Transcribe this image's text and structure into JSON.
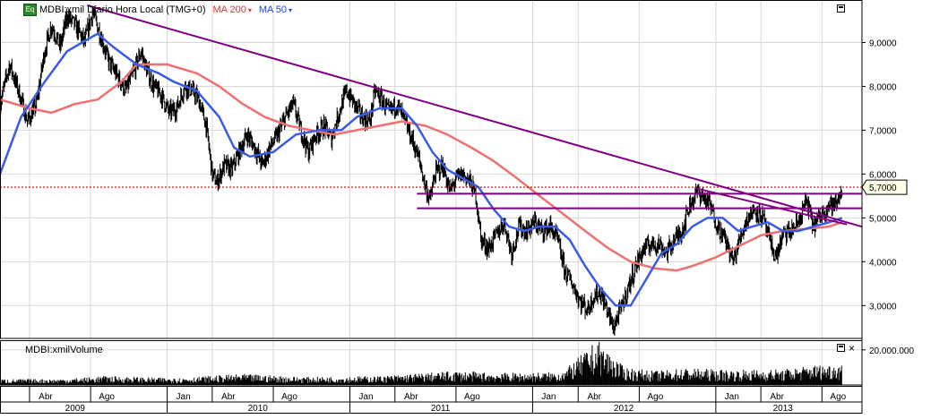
{
  "header": {
    "symbol_badge": "Eq",
    "symbol_label": "MDBI:xmil Diario Hora Local (TMG+0)",
    "ma200_label": "MA 200",
    "ma50_label": "MA 50",
    "caret": "▾"
  },
  "volume_pane": {
    "title": "MDBI:xmilVolume",
    "close_glyph": "×"
  },
  "colors": {
    "price_bars": "#000000",
    "ma200": "#f07070",
    "ma50": "#3a5ae8",
    "trendline": "#800080",
    "current_price_line": "#b00000",
    "grid": "#d8d8d8"
  },
  "chart_data": {
    "type": "line",
    "price_axis": {
      "ticks": [
        3.0,
        4.0,
        5.0,
        6.0,
        7.0,
        8.0,
        9.0
      ],
      "tick_labels": [
        "3,0000",
        "4,0000",
        "5,0000",
        "6,0000",
        "7,0000",
        "8,0000",
        "9,0000"
      ],
      "range": [
        2.25,
        9.95
      ]
    },
    "current_price": 5.7,
    "current_price_label": "5,7000",
    "volume_axis": {
      "ticks": [
        20000000
      ],
      "tick_labels": [
        "20.000.000"
      ],
      "range": [
        0,
        25000000
      ]
    },
    "time_axis": {
      "range": [
        "2009-02-01",
        "2013-10-20"
      ],
      "month_ticks": [
        {
          "date": "2009-04-01",
          "label": "Abr"
        },
        {
          "date": "2009-08-01",
          "label": "Ago"
        },
        {
          "date": "2010-01-01",
          "label": "Jan"
        },
        {
          "date": "2010-04-01",
          "label": "Abr"
        },
        {
          "date": "2010-08-01",
          "label": "Ago"
        },
        {
          "date": "2011-01-01",
          "label": "Jan"
        },
        {
          "date": "2011-04-01",
          "label": "Abr"
        },
        {
          "date": "2011-08-01",
          "label": "Ago"
        },
        {
          "date": "2012-01-01",
          "label": "Jan"
        },
        {
          "date": "2012-04-01",
          "label": "Abr"
        },
        {
          "date": "2012-08-01",
          "label": "Ago"
        },
        {
          "date": "2013-01-01",
          "label": "Jan"
        },
        {
          "date": "2013-04-01",
          "label": "Abr"
        },
        {
          "date": "2013-08-01",
          "label": "Ago"
        }
      ],
      "year_labels": [
        {
          "date": "2009-07-01",
          "label": "2009"
        },
        {
          "date": "2010-07-01",
          "label": "2010"
        },
        {
          "date": "2011-07-01",
          "label": "2011"
        },
        {
          "date": "2012-07-01",
          "label": "2012"
        },
        {
          "date": "2013-05-15",
          "label": "2013"
        }
      ],
      "year_boundaries": [
        "2010-01-01",
        "2011-01-01",
        "2012-01-01",
        "2013-01-01"
      ]
    },
    "series": [
      {
        "name": "MDBI:xmil",
        "style": "ohlc",
        "points": [
          [
            "2009-02-01",
            7.6
          ],
          [
            "2009-02-20",
            8.5
          ],
          [
            "2009-03-10",
            7.9
          ],
          [
            "2009-03-28",
            7.2
          ],
          [
            "2009-04-15",
            7.6
          ],
          [
            "2009-05-01",
            8.8
          ],
          [
            "2009-05-15",
            9.4
          ],
          [
            "2009-06-01",
            8.9
          ],
          [
            "2009-06-15",
            9.6
          ],
          [
            "2009-07-01",
            9.4
          ],
          [
            "2009-07-20",
            9.0
          ],
          [
            "2009-08-05",
            9.7
          ],
          [
            "2009-08-20",
            9.2
          ],
          [
            "2009-09-05",
            8.6
          ],
          [
            "2009-09-25",
            8.2
          ],
          [
            "2009-10-10",
            7.9
          ],
          [
            "2009-10-25",
            8.3
          ],
          [
            "2009-11-10",
            8.8
          ],
          [
            "2009-11-20",
            8.4
          ],
          [
            "2009-12-05",
            8.0
          ],
          [
            "2009-12-20",
            7.8
          ],
          [
            "2010-01-05",
            7.4
          ],
          [
            "2010-01-20",
            7.5
          ],
          [
            "2010-02-05",
            8.0
          ],
          [
            "2010-02-20",
            7.9
          ],
          [
            "2010-03-05",
            7.7
          ],
          [
            "2010-03-20",
            7.1
          ],
          [
            "2010-04-01",
            6.0
          ],
          [
            "2010-04-10",
            5.8
          ],
          [
            "2010-04-25",
            6.2
          ],
          [
            "2010-05-10",
            6.1
          ],
          [
            "2010-05-25",
            6.5
          ],
          [
            "2010-06-10",
            6.9
          ],
          [
            "2010-06-25",
            6.6
          ],
          [
            "2010-07-10",
            6.2
          ],
          [
            "2010-07-25",
            6.6
          ],
          [
            "2010-08-10",
            6.9
          ],
          [
            "2010-08-25",
            7.3
          ],
          [
            "2010-09-10",
            7.6
          ],
          [
            "2010-09-25",
            7.0
          ],
          [
            "2010-10-10",
            6.5
          ],
          [
            "2010-10-25",
            6.9
          ],
          [
            "2010-11-10",
            7.1
          ],
          [
            "2010-11-25",
            6.8
          ],
          [
            "2010-12-10",
            7.4
          ],
          [
            "2010-12-25",
            7.9
          ],
          [
            "2011-01-10",
            7.6
          ],
          [
            "2011-01-25",
            7.3
          ],
          [
            "2011-02-10",
            7.2
          ],
          [
            "2011-02-20",
            7.9
          ],
          [
            "2011-03-05",
            7.7
          ],
          [
            "2011-03-20",
            7.4
          ],
          [
            "2011-04-05",
            7.6
          ],
          [
            "2011-04-20",
            7.2
          ],
          [
            "2011-05-05",
            6.8
          ],
          [
            "2011-05-20",
            6.3
          ],
          [
            "2011-06-01",
            5.7
          ],
          [
            "2011-06-10",
            5.4
          ],
          [
            "2011-06-20",
            6.0
          ],
          [
            "2011-07-05",
            6.2
          ],
          [
            "2011-07-20",
            5.6
          ],
          [
            "2011-08-01",
            5.9
          ],
          [
            "2011-08-15",
            6.0
          ],
          [
            "2011-08-30",
            5.8
          ],
          [
            "2011-09-10",
            5.5
          ],
          [
            "2011-09-20",
            4.5
          ],
          [
            "2011-10-05",
            4.3
          ],
          [
            "2011-10-20",
            4.6
          ],
          [
            "2011-11-05",
            4.9
          ],
          [
            "2011-11-20",
            4.2
          ],
          [
            "2011-12-05",
            4.8
          ],
          [
            "2011-12-20",
            4.7
          ],
          [
            "2012-01-05",
            4.9
          ],
          [
            "2012-01-20",
            4.7
          ],
          [
            "2012-02-05",
            4.8
          ],
          [
            "2012-02-20",
            4.5
          ],
          [
            "2012-03-05",
            3.8
          ],
          [
            "2012-03-20",
            3.5
          ],
          [
            "2012-04-05",
            3.1
          ],
          [
            "2012-04-20",
            2.9
          ],
          [
            "2012-05-01",
            3.2
          ],
          [
            "2012-05-15",
            3.3
          ],
          [
            "2012-06-01",
            2.8
          ],
          [
            "2012-06-10",
            2.5
          ],
          [
            "2012-06-25",
            2.9
          ],
          [
            "2012-07-10",
            3.4
          ],
          [
            "2012-07-25",
            3.9
          ],
          [
            "2012-08-10",
            4.3
          ],
          [
            "2012-08-25",
            4.4
          ],
          [
            "2012-09-10",
            4.4
          ],
          [
            "2012-09-25",
            4.2
          ],
          [
            "2012-10-10",
            4.5
          ],
          [
            "2012-10-25",
            4.7
          ],
          [
            "2012-11-10",
            5.3
          ],
          [
            "2012-11-25",
            5.6
          ],
          [
            "2012-12-05",
            5.5
          ],
          [
            "2012-12-20",
            5.3
          ],
          [
            "2013-01-05",
            4.8
          ],
          [
            "2013-01-20",
            4.5
          ],
          [
            "2013-02-05",
            4.0
          ],
          [
            "2013-02-20",
            4.6
          ],
          [
            "2013-03-05",
            5.0
          ],
          [
            "2013-03-20",
            5.2
          ],
          [
            "2013-04-05",
            5.0
          ],
          [
            "2013-04-20",
            4.4
          ],
          [
            "2013-05-01",
            4.1
          ],
          [
            "2013-05-15",
            4.6
          ],
          [
            "2013-06-01",
            4.7
          ],
          [
            "2013-06-15",
            4.9
          ],
          [
            "2013-07-01",
            5.4
          ],
          [
            "2013-07-15",
            4.8
          ],
          [
            "2013-08-01",
            5.1
          ],
          [
            "2013-08-15",
            5.3
          ],
          [
            "2013-08-30",
            5.3
          ],
          [
            "2013-09-10",
            5.7
          ]
        ]
      },
      {
        "name": "MA 200",
        "style": "line",
        "points": [
          [
            "2009-02-01",
            7.7
          ],
          [
            "2009-04-01",
            7.5
          ],
          [
            "2009-05-15",
            7.4
          ],
          [
            "2009-07-01",
            7.6
          ],
          [
            "2009-08-15",
            7.7
          ],
          [
            "2009-10-01",
            8.1
          ],
          [
            "2009-11-01",
            8.5
          ],
          [
            "2010-01-01",
            8.5
          ],
          [
            "2010-03-01",
            8.3
          ],
          [
            "2010-04-15",
            8.0
          ],
          [
            "2010-06-01",
            7.6
          ],
          [
            "2010-07-15",
            7.3
          ],
          [
            "2010-09-01",
            7.1
          ],
          [
            "2010-10-15",
            7.0
          ],
          [
            "2010-12-01",
            6.9
          ],
          [
            "2011-01-15",
            7.0
          ],
          [
            "2011-03-01",
            7.1
          ],
          [
            "2011-04-15",
            7.2
          ],
          [
            "2011-06-01",
            7.1
          ],
          [
            "2011-07-15",
            6.9
          ],
          [
            "2011-09-01",
            6.6
          ],
          [
            "2011-10-15",
            6.3
          ],
          [
            "2011-12-01",
            5.9
          ],
          [
            "2012-01-15",
            5.5
          ],
          [
            "2012-03-01",
            5.1
          ],
          [
            "2012-04-15",
            4.7
          ],
          [
            "2012-06-01",
            4.3
          ],
          [
            "2012-07-15",
            4.0
          ],
          [
            "2012-09-01",
            3.85
          ],
          [
            "2012-10-15",
            3.8
          ],
          [
            "2012-11-15",
            3.9
          ],
          [
            "2013-01-01",
            4.1
          ],
          [
            "2013-02-15",
            4.35
          ],
          [
            "2013-04-01",
            4.6
          ],
          [
            "2013-05-15",
            4.7
          ],
          [
            "2013-07-01",
            4.75
          ],
          [
            "2013-08-15",
            4.8
          ],
          [
            "2013-09-10",
            4.9
          ]
        ]
      },
      {
        "name": "MA 50",
        "style": "line",
        "points": [
          [
            "2009-02-01",
            6.0
          ],
          [
            "2009-03-15",
            7.3
          ],
          [
            "2009-05-01",
            8.1
          ],
          [
            "2009-06-15",
            8.8
          ],
          [
            "2009-07-15",
            9.0
          ],
          [
            "2009-08-15",
            9.2
          ],
          [
            "2009-09-15",
            8.9
          ],
          [
            "2009-11-01",
            8.5
          ],
          [
            "2009-12-15",
            8.3
          ],
          [
            "2010-01-15",
            8.1
          ],
          [
            "2010-03-01",
            7.9
          ],
          [
            "2010-04-15",
            7.3
          ],
          [
            "2010-05-15",
            6.6
          ],
          [
            "2010-06-15",
            6.4
          ],
          [
            "2010-08-01",
            6.5
          ],
          [
            "2010-09-15",
            6.9
          ],
          [
            "2010-11-01",
            7.0
          ],
          [
            "2010-12-15",
            7.0
          ],
          [
            "2011-01-15",
            7.3
          ],
          [
            "2011-03-01",
            7.5
          ],
          [
            "2011-04-15",
            7.5
          ],
          [
            "2011-05-15",
            7.1
          ],
          [
            "2011-06-15",
            6.5
          ],
          [
            "2011-07-15",
            6.1
          ],
          [
            "2011-08-15",
            5.9
          ],
          [
            "2011-09-15",
            5.7
          ],
          [
            "2011-10-15",
            5.2
          ],
          [
            "2011-11-15",
            4.8
          ],
          [
            "2011-12-15",
            4.7
          ],
          [
            "2012-01-15",
            4.8
          ],
          [
            "2012-02-15",
            4.8
          ],
          [
            "2012-03-15",
            4.5
          ],
          [
            "2012-04-15",
            3.9
          ],
          [
            "2012-05-15",
            3.4
          ],
          [
            "2012-06-15",
            3.0
          ],
          [
            "2012-07-15",
            3.0
          ],
          [
            "2012-08-15",
            3.6
          ],
          [
            "2012-09-15",
            4.2
          ],
          [
            "2012-10-15",
            4.4
          ],
          [
            "2012-11-15",
            4.8
          ],
          [
            "2012-12-15",
            5.0
          ],
          [
            "2013-01-15",
            5.0
          ],
          [
            "2013-02-15",
            4.7
          ],
          [
            "2013-03-15",
            4.8
          ],
          [
            "2013-04-15",
            4.9
          ],
          [
            "2013-05-15",
            4.7
          ],
          [
            "2013-06-15",
            4.7
          ],
          [
            "2013-07-15",
            4.8
          ],
          [
            "2013-08-15",
            4.9
          ],
          [
            "2013-09-10",
            5.0
          ]
        ]
      },
      {
        "name": "MDBI:xmilVolume",
        "style": "volume",
        "points": [
          [
            "2009-06-01",
            3000000
          ],
          [
            "2009-09-01",
            4500000
          ],
          [
            "2010-01-15",
            3500000
          ],
          [
            "2010-06-01",
            5500000
          ],
          [
            "2010-10-01",
            4000000
          ],
          [
            "2011-03-01",
            4500000
          ],
          [
            "2011-08-01",
            7000000
          ],
          [
            "2011-11-01",
            6000000
          ],
          [
            "2012-03-01",
            6500000
          ],
          [
            "2012-05-10",
            22500000
          ],
          [
            "2012-07-01",
            9000000
          ],
          [
            "2012-09-01",
            7000000
          ],
          [
            "2012-11-01",
            8500000
          ],
          [
            "2013-02-01",
            7500000
          ],
          [
            "2013-05-15",
            8000000
          ],
          [
            "2013-07-15",
            10000000
          ],
          [
            "2013-09-10",
            11000000
          ]
        ]
      }
    ],
    "annotations": [
      {
        "type": "trendline",
        "from": [
          "2009-07-25",
          9.85
        ],
        "to": [
          "2013-10-20",
          4.8
        ]
      },
      {
        "type": "trendline",
        "from": [
          "2012-11-20",
          5.68
        ],
        "to": [
          "2013-09-20",
          4.85
        ]
      },
      {
        "type": "horizontal",
        "value": 5.55,
        "from": "2011-05-15",
        "to": "2013-10-20"
      },
      {
        "type": "horizontal",
        "value": 5.22,
        "from": "2011-05-15",
        "to": "2013-10-20"
      }
    ]
  }
}
